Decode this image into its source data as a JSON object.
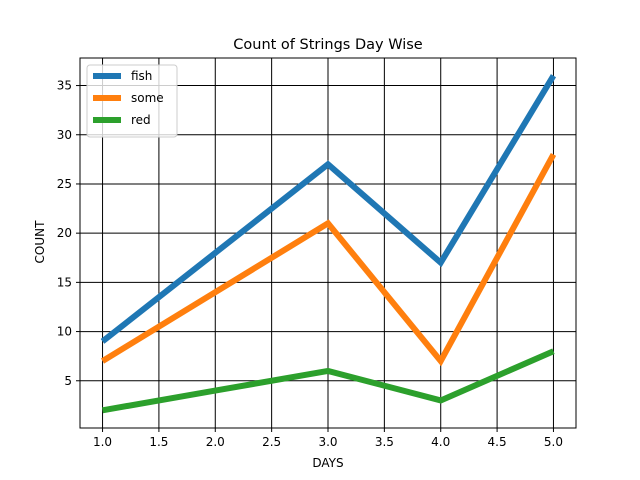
{
  "chart_data": {
    "type": "line",
    "title": "Count of Strings Day Wise",
    "xlabel": "DAYS",
    "ylabel": "COUNT",
    "x": [
      1,
      2,
      3,
      4,
      5
    ],
    "xlim": [
      0.8,
      5.2
    ],
    "ylim": [
      0.2,
      37.8
    ],
    "xticks": [
      "1.0",
      "1.5",
      "2.0",
      "2.5",
      "3.0",
      "3.5",
      "4.0",
      "4.5",
      "5.0"
    ],
    "yticks": [
      "5",
      "10",
      "15",
      "20",
      "25",
      "30",
      "35"
    ],
    "grid": true,
    "legend_position": "upper-left",
    "series": [
      {
        "name": "fish",
        "color": "#1f77b4",
        "values": [
          9,
          18,
          27,
          17,
          36
        ]
      },
      {
        "name": "some",
        "color": "#ff7f0e",
        "values": [
          7,
          14,
          21,
          7,
          28
        ]
      },
      {
        "name": "red",
        "color": "#2ca02c",
        "values": [
          2,
          4,
          6,
          3,
          8
        ]
      }
    ]
  }
}
